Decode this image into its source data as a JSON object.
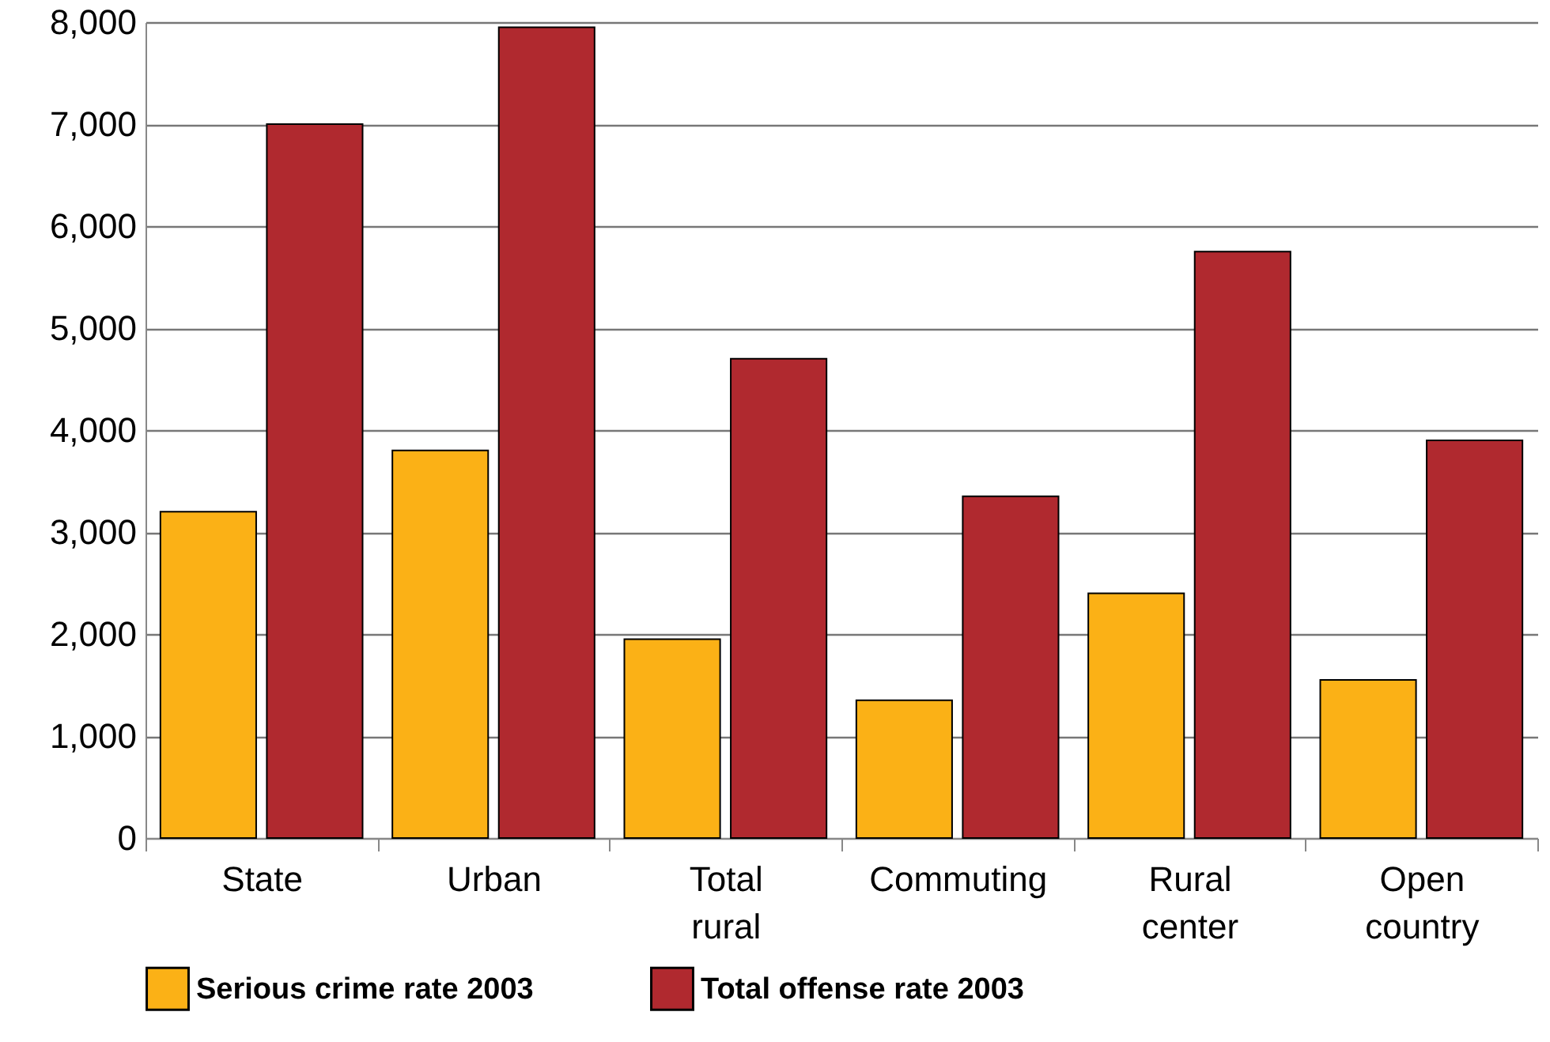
{
  "chart_data": {
    "type": "bar",
    "categories": [
      "State",
      "Urban",
      "Total rural",
      "Commuting",
      "Rural center",
      "Open country"
    ],
    "series": [
      {
        "name": "Serious crime rate 2003",
        "color": "#fbb116",
        "values": [
          3200,
          3800,
          1950,
          1350,
          2400,
          1550
        ]
      },
      {
        "name": "Total offense rate 2003",
        "color": "#b0292f",
        "values": [
          7000,
          7950,
          4700,
          3350,
          5750,
          3900
        ]
      }
    ],
    "ylim": [
      0,
      8000
    ],
    "yticks": [
      {
        "value": 0,
        "label": "0"
      },
      {
        "value": 1000,
        "label": "1,000"
      },
      {
        "value": 2000,
        "label": "2,000"
      },
      {
        "value": 3000,
        "label": "3,000"
      },
      {
        "value": 4000,
        "label": "4,000"
      },
      {
        "value": 5000,
        "label": "5,000"
      },
      {
        "value": 6000,
        "label": "6,000"
      },
      {
        "value": 7000,
        "label": "7,000"
      },
      {
        "value": 8000,
        "label": "8,000"
      }
    ],
    "grid": "y",
    "legend": "bottom"
  }
}
